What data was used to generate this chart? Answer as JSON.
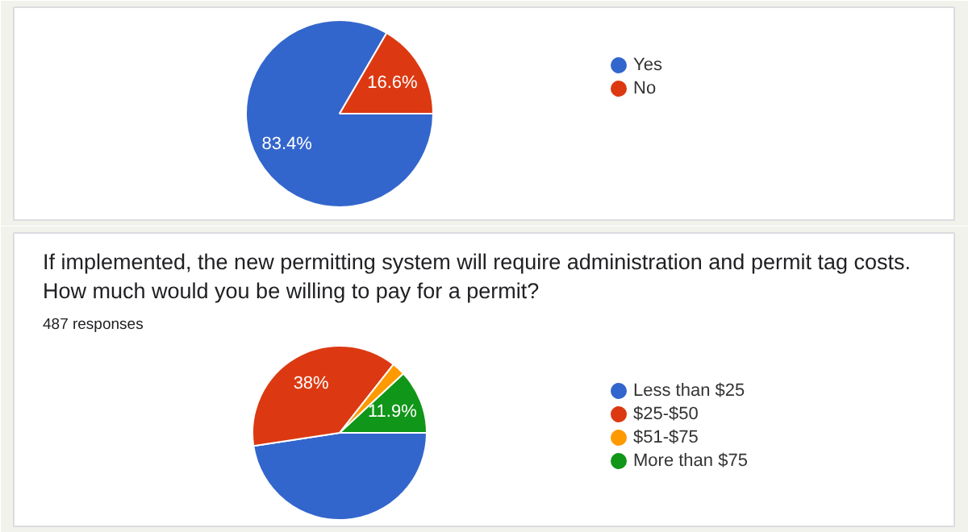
{
  "chart_data": [
    {
      "type": "pie",
      "categories": [
        "Yes",
        "No"
      ],
      "values": [
        83.4,
        16.6
      ],
      "colors": [
        "#3366cc",
        "#dc3912"
      ],
      "value_labels": [
        "83.4%",
        "16.6%"
      ],
      "legend": "right"
    },
    {
      "type": "pie",
      "title": "If implemented, the new permitting system will require administration and permit tag costs. How much would you be willing to pay for a permit?",
      "subtitle": "487 responses",
      "categories": [
        "Less than $25",
        "$25-$50",
        "$51-$75",
        "More than $75"
      ],
      "values": [
        47.6,
        38,
        2.5,
        11.9
      ],
      "colors": [
        "#3366cc",
        "#dc3912",
        "#ff9900",
        "#109618"
      ],
      "value_labels": [
        null,
        "38%",
        null,
        "11.9%"
      ],
      "legend": "right"
    }
  ]
}
